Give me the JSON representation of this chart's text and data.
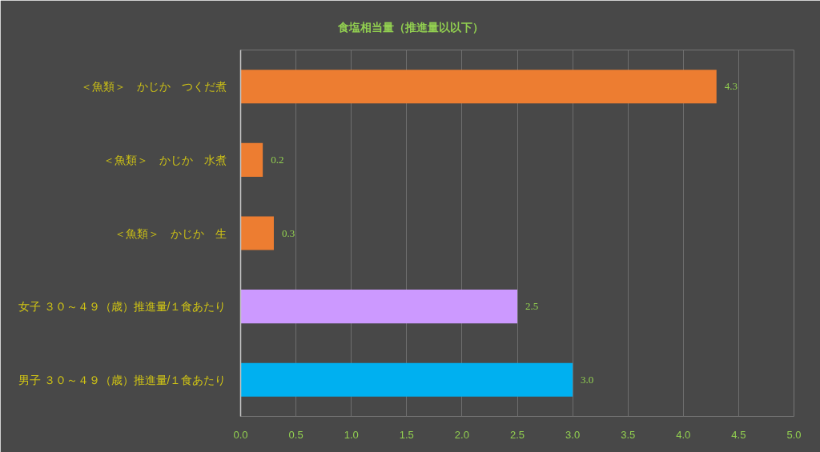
{
  "chart_data": {
    "type": "bar",
    "orientation": "horizontal",
    "title": "食塩相当量（推進量以以下）",
    "categories": [
      "＜魚類＞　かじか　つくだ煮",
      "＜魚類＞　かじか　水煮",
      "＜魚類＞　かじか　生",
      "女子 ３０～４９（歳）推進量/１食あたり",
      "男子 ３０～４９（歳）推進量/１食あたり"
    ],
    "values": [
      4.3,
      0.2,
      0.3,
      2.5,
      3.0
    ],
    "colors": [
      "#ed7d31",
      "#ed7d31",
      "#ed7d31",
      "#cc99ff",
      "#00b0f0"
    ],
    "value_labels": [
      "4.3",
      "0.2",
      "0.3",
      "2.5",
      "3.0"
    ],
    "xlim": [
      0,
      5
    ],
    "xticks": [
      {
        "value": 0,
        "label": "0.0"
      },
      0.5,
      {
        "value": 1,
        "label": "1.0"
      },
      1.5,
      {
        "value": 2,
        "label": "2.0"
      },
      2.5,
      {
        "value": 3,
        "label": "3.0"
      },
      3.5,
      {
        "value": 4,
        "label": "4.0"
      },
      4.5,
      {
        "value": 5,
        "label": "5.0"
      }
    ],
    "grid": "x"
  }
}
